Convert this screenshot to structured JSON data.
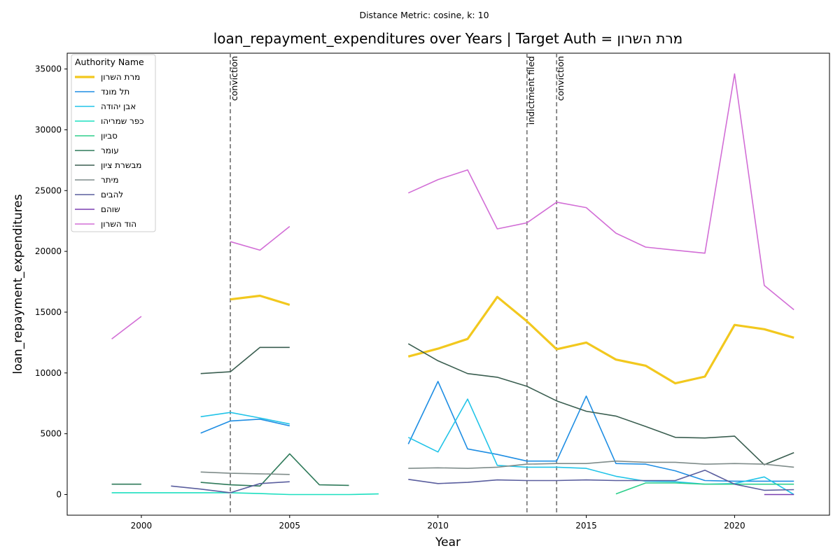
{
  "suptitle": "Distance Metric: cosine, k: 10",
  "chart_data": {
    "type": "line",
    "title": "loan_repayment_expenditures over Years | Target Auth = מרת השרון",
    "xlabel": "Year",
    "ylabel": "loan_repayment_expenditures",
    "xlim": [
      1997.5,
      2023.2
    ],
    "ylim": [
      -1700,
      36300
    ],
    "xticks": [
      2000,
      2005,
      2010,
      2015,
      2020
    ],
    "yticks": [
      0,
      5000,
      10000,
      15000,
      20000,
      25000,
      30000,
      35000
    ],
    "grid": false,
    "legend": {
      "title": "Authority Name",
      "placement": "top-left"
    },
    "events": [
      {
        "x": 2003,
        "label": "conviction"
      },
      {
        "x": 2013,
        "label": "indictment filed"
      },
      {
        "x": 2014,
        "label": "conviction"
      }
    ],
    "series": [
      {
        "name": "מרת השרון",
        "color": "#f2c81e",
        "width": 3.2,
        "x": [
          2003,
          2004,
          2005,
          null,
          2009,
          2010,
          2011,
          2012,
          2013,
          2014,
          2015,
          2016,
          2017,
          2018,
          2019,
          2020,
          2021,
          2022
        ],
        "y": [
          16050,
          16350,
          15600,
          null,
          11350,
          12000,
          12800,
          16250,
          14250,
          11950,
          12500,
          11100,
          10600,
          9150,
          9700,
          13950,
          13600,
          12900
        ]
      },
      {
        "name": "תל מונד",
        "color": "#1f8ee3",
        "width": 1.6,
        "x": [
          2002,
          2003,
          2004,
          2005,
          null,
          2009,
          2010,
          2011,
          2012,
          2013,
          2014,
          2015,
          2016,
          2017,
          2018,
          2019,
          2020,
          2021,
          2022
        ],
        "y": [
          5050,
          6050,
          6200,
          5650,
          null,
          4150,
          9300,
          3750,
          3300,
          2750,
          2750,
          8100,
          2550,
          2500,
          1950,
          1150,
          1100,
          1100,
          1100
        ]
      },
      {
        "name": "אבן יהודה",
        "color": "#22c4e8",
        "width": 1.6,
        "x": [
          2002,
          2003,
          2004,
          2005,
          null,
          2009,
          2010,
          2011,
          2012,
          2013,
          2014,
          2015,
          2016,
          2017,
          2018,
          2019,
          2020,
          2021,
          2022
        ],
        "y": [
          6400,
          6750,
          6300,
          5800,
          null,
          4700,
          3500,
          7850,
          2400,
          2250,
          2250,
          2150,
          1500,
          1100,
          1050,
          850,
          900,
          1450,
          0
        ]
      },
      {
        "name": "כפר שמריהו",
        "color": "#1ddfc0",
        "width": 1.6,
        "x": [
          1999,
          2000,
          2001,
          2002,
          2003,
          2004,
          2005,
          2006,
          2007,
          2008
        ],
        "y": [
          150,
          150,
          150,
          150,
          150,
          80,
          0,
          0,
          0,
          50
        ]
      },
      {
        "name": "סביון",
        "color": "#2ecf8c",
        "width": 1.6,
        "x": [
          2016,
          2017,
          2018,
          2019,
          2020,
          2021,
          2022
        ],
        "y": [
          50,
          950,
          950,
          850,
          850,
          850,
          850
        ]
      },
      {
        "name": "עומר",
        "color": "#2f7a5a",
        "width": 1.6,
        "x": [
          1999,
          2000,
          null,
          2002,
          2003,
          2004,
          2005,
          2006,
          2007
        ],
        "y": [
          850,
          850,
          null,
          1000,
          800,
          700,
          3350,
          800,
          750
        ]
      },
      {
        "name": "מבשרת ציון",
        "color": "#3a5e50",
        "width": 1.6,
        "x": [
          2002,
          2003,
          2004,
          2005,
          null,
          2009,
          2010,
          2011,
          2012,
          2013,
          2014,
          2015,
          2016,
          2017,
          2018,
          2019,
          2020,
          2021,
          2022
        ],
        "y": [
          9950,
          10100,
          12100,
          12100,
          null,
          12400,
          11000,
          9950,
          9650,
          8900,
          7700,
          6850,
          6450,
          5600,
          4700,
          4650,
          4800,
          2450,
          3450
        ]
      },
      {
        "name": "מיתר",
        "color": "#7f8c8a",
        "width": 1.6,
        "x": [
          2002,
          2003,
          2004,
          2005,
          null,
          2009,
          2010,
          2011,
          2012,
          2013,
          2014,
          2015,
          2016,
          2017,
          2018,
          2019,
          2020,
          2021,
          2022
        ],
        "y": [
          1850,
          1750,
          1700,
          1650,
          null,
          2150,
          2200,
          2150,
          2250,
          2500,
          2550,
          2550,
          2750,
          2650,
          2650,
          2500,
          2550,
          2500,
          2250
        ]
      },
      {
        "name": "להבים",
        "color": "#5a5e9e",
        "width": 1.6,
        "x": [
          2001,
          2002,
          2003,
          2004,
          2005,
          null,
          2009,
          2010,
          2011,
          2012,
          2013,
          2014,
          2015,
          2016,
          2017,
          2018,
          2019,
          2020,
          2021,
          2022
        ],
        "y": [
          700,
          450,
          150,
          900,
          1050,
          null,
          1250,
          900,
          1000,
          1200,
          1150,
          1150,
          1200,
          1150,
          1150,
          1150,
          2000,
          850,
          350,
          400
        ]
      },
      {
        "name": "שוהם",
        "color": "#7a3fb0",
        "width": 1.6,
        "x": [
          2021,
          2022
        ],
        "y": [
          0,
          0
        ]
      },
      {
        "name": "הוד השרון",
        "color": "#d26ed6",
        "width": 1.6,
        "x": [
          1999,
          2000,
          null,
          2003,
          2004,
          2005,
          null,
          2009,
          2010,
          2011,
          2012,
          2013,
          2014,
          2015,
          2016,
          2017,
          2018,
          2019,
          2020,
          2021,
          2022
        ],
        "y": [
          12800,
          14650,
          null,
          20800,
          20100,
          22050,
          null,
          24800,
          25900,
          26700,
          21850,
          22350,
          24050,
          23600,
          21500,
          20350,
          20100,
          19850,
          34600,
          17200,
          15200
        ]
      }
    ]
  }
}
